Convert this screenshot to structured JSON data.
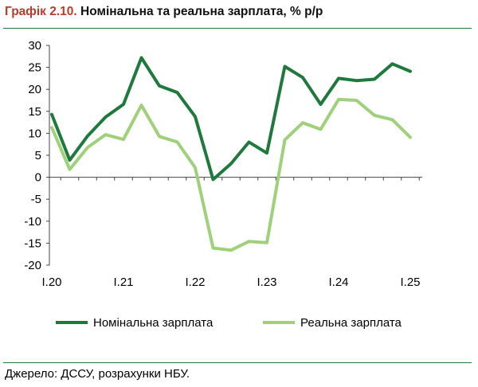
{
  "header": {
    "title_prefix": "Графік 2.10.",
    "title_text": "Номінальна та реальна зарплата, % р/р"
  },
  "footer": {
    "source": "Джерело: ДССУ, розрахунки НБУ."
  },
  "colors": {
    "nominal": "#1e7a3c",
    "real": "#9fd17a",
    "title_number": "#c0392b",
    "rule": "#1e7a3c"
  },
  "chart_data": {
    "type": "line",
    "title": "Номінальна та реальна зарплата, % р/р",
    "xlabel": "",
    "ylabel": "",
    "ylim": [
      -20,
      30
    ],
    "yticks": [
      30,
      25,
      20,
      15,
      10,
      5,
      0,
      -5,
      -10,
      -15,
      -20
    ],
    "x": [
      "I.20",
      "II.20",
      "III.20",
      "IV.20",
      "I.21",
      "II.21",
      "III.21",
      "IV.21",
      "I.22",
      "II.22",
      "III.22",
      "IV.22",
      "I.23",
      "II.23",
      "III.23",
      "IV.23",
      "I.24",
      "II.24",
      "III.24",
      "IV.24",
      "I.25"
    ],
    "xtick_labels": [
      "I.20",
      "I.21",
      "I.22",
      "I.23",
      "I.24",
      "I.25"
    ],
    "grid": false,
    "legend": "bottom",
    "series": [
      {
        "name": "Номінальна зарплата",
        "values": [
          14.3,
          3.9,
          9.4,
          13.7,
          16.6,
          27.2,
          20.8,
          19.3,
          13.8,
          -0.5,
          3.1,
          8.0,
          5.5,
          25.2,
          22.7,
          16.6,
          22.5,
          22.0,
          22.3,
          25.8,
          24.1
        ]
      },
      {
        "name": "Реальна зарплата",
        "values": [
          11.3,
          1.8,
          6.8,
          9.7,
          8.6,
          16.4,
          9.3,
          8.0,
          2.2,
          -16.1,
          -16.6,
          -14.6,
          -14.9,
          8.5,
          12.4,
          10.9,
          17.7,
          17.5,
          14.1,
          13.1,
          9.1
        ]
      }
    ]
  }
}
